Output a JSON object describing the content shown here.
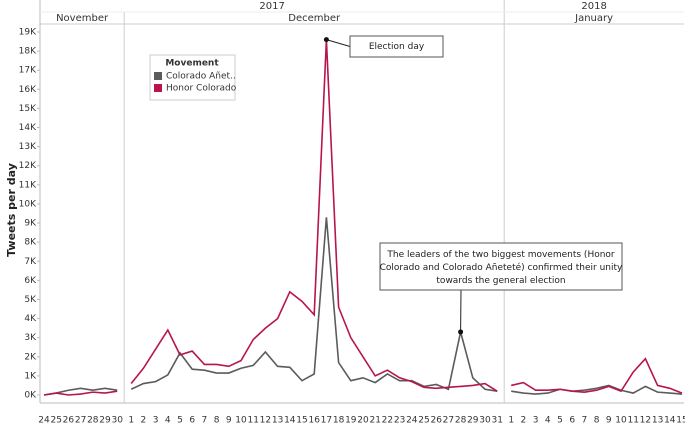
{
  "chart_data": {
    "type": "line",
    "y_label": "Tweets per day",
    "years": [
      {
        "year": "2017",
        "months": [
          {
            "month": "November",
            "days": [
              24,
              25,
              26,
              27,
              28,
              29,
              30
            ]
          },
          {
            "month": "December",
            "days": [
              1,
              2,
              3,
              4,
              5,
              6,
              7,
              8,
              9,
              10,
              11,
              12,
              13,
              14,
              15,
              16,
              17,
              18,
              19,
              20,
              21,
              22,
              23,
              24,
              25,
              26,
              27,
              28,
              29,
              30,
              31
            ]
          }
        ]
      },
      {
        "year": "2018",
        "months": [
          {
            "month": "January",
            "days": [
              1,
              2,
              3,
              4,
              5,
              6,
              7,
              8,
              9,
              10,
              11,
              12,
              13,
              14,
              15
            ]
          }
        ]
      }
    ],
    "ylim": [
      0,
      19000
    ],
    "yticks": [
      {
        "value": 0,
        "label": "0K"
      },
      {
        "value": 1000,
        "label": "1K"
      },
      {
        "value": 2000,
        "label": "2K"
      },
      {
        "value": 3000,
        "label": "3K"
      },
      {
        "value": 4000,
        "label": "4K"
      },
      {
        "value": 5000,
        "label": "5K"
      },
      {
        "value": 6000,
        "label": "6K"
      },
      {
        "value": 7000,
        "label": "7K"
      },
      {
        "value": 8000,
        "label": "8K"
      },
      {
        "value": 9000,
        "label": "9K"
      },
      {
        "value": 10000,
        "label": "10K"
      },
      {
        "value": 11000,
        "label": "11K"
      },
      {
        "value": 12000,
        "label": "12K"
      },
      {
        "value": 13000,
        "label": "13K"
      },
      {
        "value": 14000,
        "label": "14K"
      },
      {
        "value": 15000,
        "label": "15K"
      },
      {
        "value": 16000,
        "label": "16K"
      },
      {
        "value": 17000,
        "label": "17K"
      },
      {
        "value": 18000,
        "label": "18K"
      },
      {
        "value": 19000,
        "label": "19K"
      }
    ],
    "legend": {
      "title": "Movement",
      "position": "upper left"
    },
    "series": [
      {
        "name": "Colorado Añet..",
        "color": "#5b5b5b",
        "values": [
          0,
          100,
          250,
          350,
          250,
          350,
          250,
          300,
          600,
          700,
          1050,
          2200,
          1350,
          1300,
          1150,
          1150,
          1400,
          1550,
          2250,
          1500,
          1450,
          750,
          1100,
          9300,
          1700,
          750,
          900,
          650,
          1100,
          750,
          750,
          450,
          550,
          300,
          3300,
          900,
          300,
          200,
          200,
          100,
          50,
          100,
          300,
          200,
          250,
          350,
          500,
          250,
          100,
          450,
          150,
          100,
          50
        ]
      },
      {
        "name": "Honor Colorado",
        "color": "#b8154c",
        "values": [
          0,
          100,
          0,
          50,
          150,
          100,
          200,
          600,
          1400,
          2400,
          3400,
          2100,
          2300,
          1600,
          1600,
          1500,
          1800,
          2900,
          3500,
          4000,
          5400,
          4900,
          4200,
          18600,
          4600,
          3000,
          2000,
          1000,
          1300,
          900,
          700,
          400,
          350,
          400,
          450,
          500,
          600,
          200,
          500,
          650,
          250,
          250,
          300,
          200,
          150,
          250,
          450,
          200,
          1200,
          1900,
          500,
          350,
          100
        ]
      }
    ],
    "annotations": [
      {
        "text": [
          "Election day"
        ]
      },
      {
        "text": [
          "The leaders of the two biggest movements (Honor",
          "Colorado and Colorado Añeteté) confirmed their unity",
          "towards the general election"
        ]
      }
    ]
  }
}
